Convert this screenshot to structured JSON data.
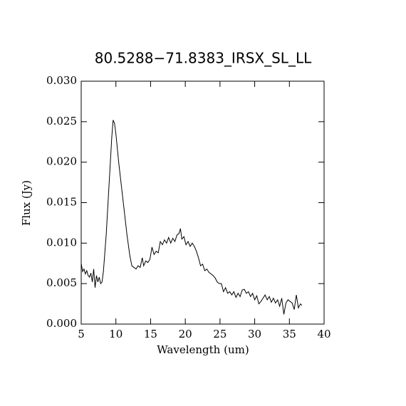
{
  "chart_data": {
    "type": "line",
    "title": "80.5288−71.8383_IRSX_SL_LL",
    "xlabel": "Wavelength (um)",
    "ylabel": "Flux (Jy)",
    "color": "#000000",
    "xlim": [
      5,
      40
    ],
    "ylim": [
      0,
      0.03
    ],
    "xticks": [
      5,
      10,
      15,
      20,
      25,
      30,
      35,
      40
    ],
    "yticks": [
      {
        "value": 0,
        "label": "0.000"
      },
      0.005,
      {
        "value": 0.01,
        "label": "0.010"
      },
      0.015,
      {
        "value": 0.02,
        "label": "0.020"
      },
      0.025,
      {
        "value": 0.03,
        "label": "0.030"
      }
    ],
    "x": [
      5.0,
      5.2,
      5.4,
      5.6,
      5.8,
      6.0,
      6.2,
      6.4,
      6.6,
      6.8,
      7.0,
      7.2,
      7.4,
      7.6,
      7.8,
      8.0,
      8.2,
      8.6,
      9.0,
      9.4,
      9.6,
      9.8,
      10.0,
      10.4,
      10.8,
      11.2,
      11.6,
      12.0,
      12.3,
      12.6,
      12.9,
      13.2,
      13.5,
      13.8,
      14.0,
      14.3,
      14.6,
      14.9,
      15.2,
      15.5,
      15.8,
      16.1,
      16.4,
      16.7,
      17.0,
      17.3,
      17.6,
      17.9,
      18.2,
      18.5,
      18.8,
      19.1,
      19.3,
      19.5,
      19.8,
      20.1,
      20.4,
      20.7,
      21.0,
      21.3,
      21.6,
      21.9,
      22.2,
      22.5,
      22.8,
      23.1,
      23.4,
      23.7,
      24.0,
      24.3,
      24.6,
      24.9,
      25.2,
      25.5,
      25.8,
      26.1,
      26.4,
      26.7,
      27.0,
      27.3,
      27.6,
      27.9,
      28.2,
      28.5,
      28.8,
      29.1,
      29.4,
      29.7,
      30.0,
      30.3,
      30.6,
      30.9,
      31.2,
      31.5,
      31.8,
      32.1,
      32.4,
      32.7,
      33.0,
      33.3,
      33.6,
      33.9,
      34.2,
      34.5,
      34.8,
      35.1,
      35.4,
      35.7,
      36.0,
      36.3,
      36.6,
      36.8
    ],
    "values": [
      0.0075,
      0.0065,
      0.0068,
      0.0062,
      0.0066,
      0.006,
      0.0058,
      0.0063,
      0.0052,
      0.0068,
      0.0045,
      0.006,
      0.0052,
      0.0058,
      0.005,
      0.0052,
      0.0065,
      0.011,
      0.017,
      0.023,
      0.0252,
      0.0248,
      0.0235,
      0.02,
      0.017,
      0.014,
      0.011,
      0.0085,
      0.0072,
      0.007,
      0.0068,
      0.0072,
      0.007,
      0.0082,
      0.0072,
      0.0078,
      0.0076,
      0.008,
      0.0095,
      0.0086,
      0.009,
      0.0088,
      0.0102,
      0.0098,
      0.0104,
      0.01,
      0.0107,
      0.01,
      0.0106,
      0.0102,
      0.011,
      0.0112,
      0.0118,
      0.0105,
      0.0108,
      0.0098,
      0.0102,
      0.0096,
      0.01,
      0.0096,
      0.009,
      0.0082,
      0.0072,
      0.0074,
      0.0066,
      0.0068,
      0.0064,
      0.0062,
      0.006,
      0.0057,
      0.0052,
      0.005,
      0.005,
      0.004,
      0.0045,
      0.0038,
      0.004,
      0.0036,
      0.004,
      0.0033,
      0.0038,
      0.0034,
      0.0042,
      0.0043,
      0.0038,
      0.004,
      0.0034,
      0.0038,
      0.003,
      0.0035,
      0.0025,
      0.0028,
      0.0032,
      0.0036,
      0.003,
      0.0034,
      0.0027,
      0.0032,
      0.0026,
      0.003,
      0.0022,
      0.0032,
      0.0012,
      0.0026,
      0.003,
      0.0028,
      0.0026,
      0.0018,
      0.0036,
      0.002,
      0.0025,
      0.0023
    ]
  }
}
